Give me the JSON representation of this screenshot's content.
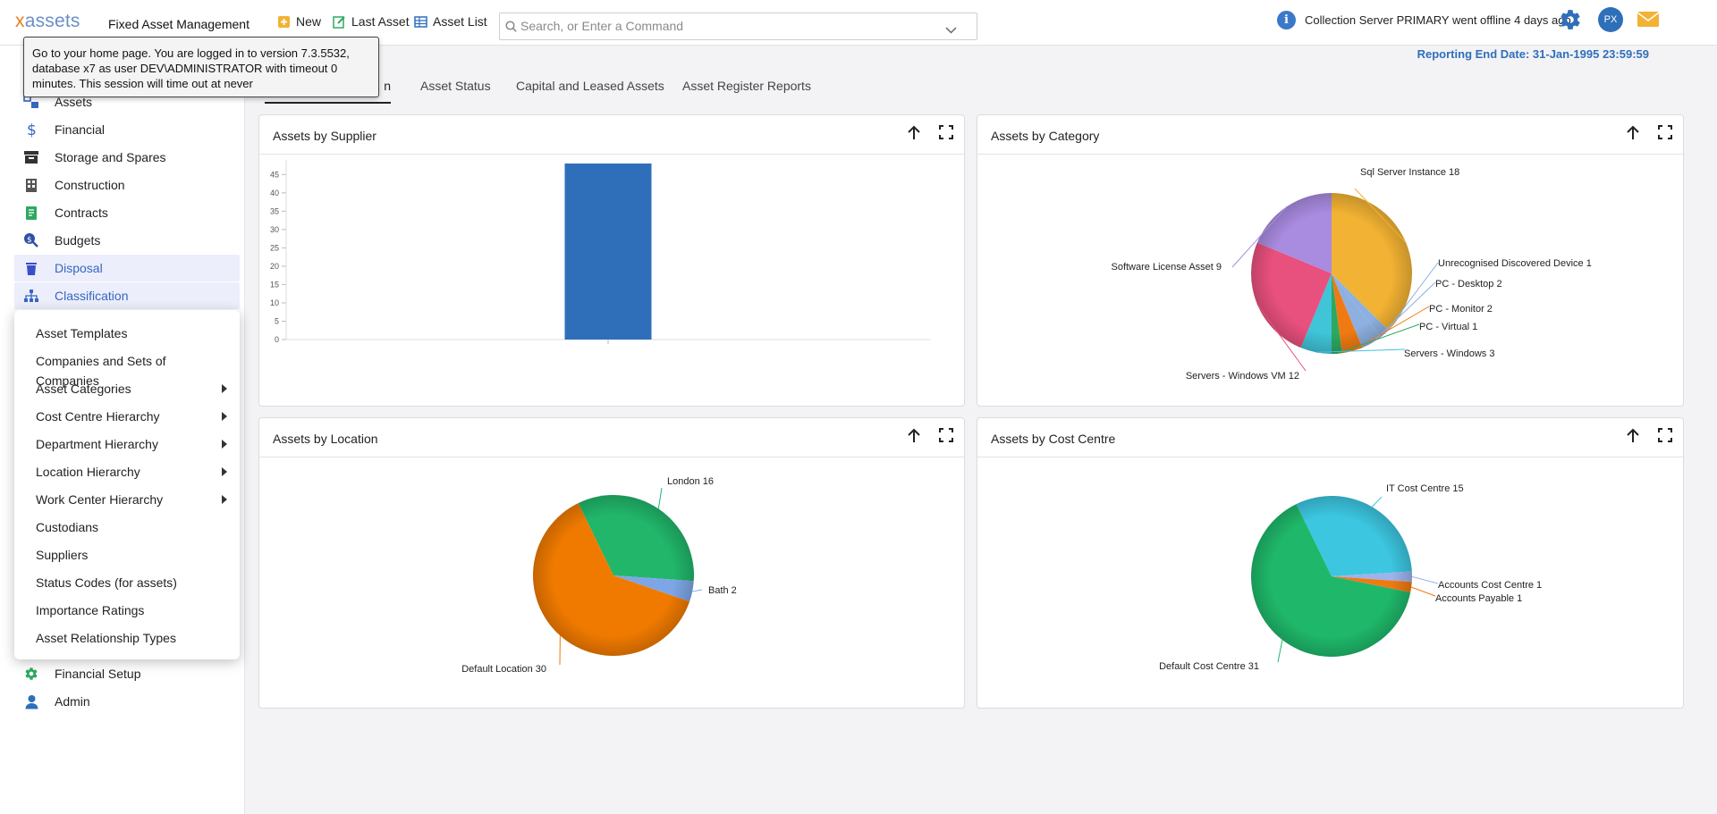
{
  "header": {
    "logo": "xassets",
    "app_title": "Fixed Asset Management",
    "new_label": "New",
    "last_asset_label": "Last Asset",
    "asset_list_label": "Asset List",
    "search_placeholder": "Search, or Enter a Command",
    "status_message": "Collection Server PRIMARY went offline 4 days ago",
    "avatar_initials": "PX"
  },
  "tooltip": {
    "text": "Go to your home page. You are logged in to version 7.3.5532, database x7 as user DEV\\ADMINISTRATOR with timeout 0 minutes. This session will time out at never"
  },
  "sidebar": {
    "items": [
      {
        "label": "Assets",
        "icon": "assets-icon"
      },
      {
        "label": "Financial",
        "icon": "dollar-icon"
      },
      {
        "label": "Storage and Spares",
        "icon": "archive-box-icon"
      },
      {
        "label": "Construction",
        "icon": "building-icon"
      },
      {
        "label": "Contracts",
        "icon": "contract-book-icon"
      },
      {
        "label": "Budgets",
        "icon": "budget-search-icon"
      },
      {
        "label": "Disposal",
        "icon": "trash-icon"
      },
      {
        "label": "Classification",
        "icon": "hierarchy-icon"
      },
      {
        "label": "Financial Setup",
        "icon": "gear-icon"
      },
      {
        "label": "Admin",
        "icon": "user-icon"
      }
    ],
    "flyout": [
      {
        "label": "Asset Templates",
        "submenu": false
      },
      {
        "label": "Companies and Sets of Companies",
        "submenu": false
      },
      {
        "label": "Asset Categories",
        "submenu": true
      },
      {
        "label": "Cost Centre Hierarchy",
        "submenu": true
      },
      {
        "label": "Department Hierarchy",
        "submenu": true
      },
      {
        "label": "Location Hierarchy",
        "submenu": true
      },
      {
        "label": "Work Center Hierarchy",
        "submenu": true
      },
      {
        "label": "Custodians",
        "submenu": false
      },
      {
        "label": "Suppliers",
        "submenu": false
      },
      {
        "label": "Status Codes (for assets)",
        "submenu": false
      },
      {
        "label": "Importance Ratings",
        "submenu": false
      },
      {
        "label": "Asset Relationship Types",
        "submenu": false
      }
    ]
  },
  "tabs": [
    {
      "label": "n",
      "active": true
    },
    {
      "label": "Asset Status",
      "active": false
    },
    {
      "label": "Capital and Leased Assets",
      "active": false
    },
    {
      "label": "Asset Register Reports",
      "active": false
    }
  ],
  "report_date": "Reporting End Date: 31-Jan-1995 23:59:59",
  "colors": {
    "accent": "#2f6fba",
    "bar": "#2f6fba",
    "active_nav_bg": "#eceefb"
  },
  "panels": {
    "supplier_title": "Assets by Supplier",
    "category_title": "Assets by Category",
    "location_title": "Assets by Location",
    "cost_centre_title": "Assets by Cost Centre"
  },
  "chart_data": [
    {
      "type": "bar",
      "title": "Assets by Supplier",
      "categories": [
        ""
      ],
      "values": [
        48
      ],
      "ylim": [
        0,
        48
      ],
      "yticks": [
        0,
        5,
        10,
        15,
        20,
        25,
        30,
        35,
        40,
        45
      ],
      "color": "#2f6fba"
    },
    {
      "type": "pie",
      "title": "Assets by Category",
      "labels": [
        "Sql Server Instance",
        "Unrecognised Discovered Device",
        "PC - Desktop",
        "PC - Monitor",
        "PC - Virtual",
        "Servers - Windows",
        "Servers - Windows VM",
        "Software License Asset"
      ],
      "values": [
        18,
        1,
        2,
        2,
        1,
        3,
        12,
        9
      ],
      "colors": [
        "#f2b233",
        "#8db0e0",
        "#8db0e0",
        "#f07a12",
        "#2ea860",
        "#3fc4d8",
        "#e8507e",
        "#a98be0"
      ]
    },
    {
      "type": "pie",
      "title": "Assets by Location",
      "labels": [
        "London",
        "Bath",
        "Default Location"
      ],
      "values": [
        16,
        2,
        30
      ],
      "colors": [
        "#21b66a",
        "#7ea6e6",
        "#f07a00"
      ]
    },
    {
      "type": "pie",
      "title": "Assets by Cost Centre",
      "labels": [
        "IT Cost Centre",
        "Accounts Cost Centre",
        "Accounts Payable",
        "Default Cost Centre"
      ],
      "values": [
        15,
        1,
        1,
        31
      ],
      "colors": [
        "#3cc6e0",
        "#9db3ec",
        "#f07a12",
        "#1fb86a"
      ]
    }
  ]
}
